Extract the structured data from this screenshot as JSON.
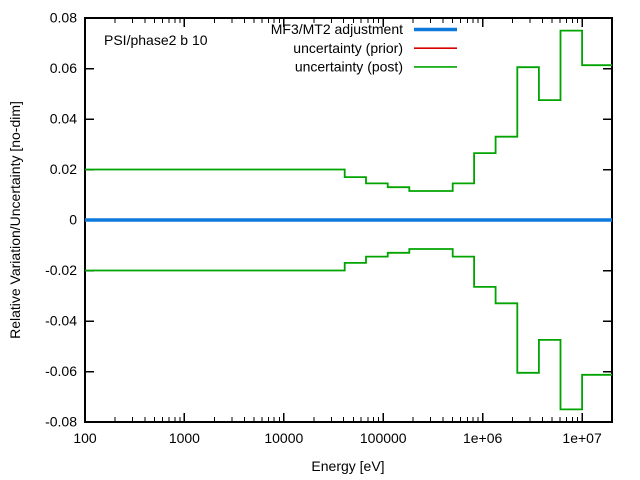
{
  "chart_data": {
    "type": "line",
    "annotation": "PSI/phase2 b 10",
    "xlabel": "Energy [eV]",
    "ylabel": "Relative Variation/Uncertainty [no-dim]",
    "xscale": "log",
    "yscale": "linear",
    "xlim": [
      100,
      20000000
    ],
    "ylim": [
      -0.08,
      0.08
    ],
    "grid": false,
    "xticks": {
      "values": [
        100,
        1000,
        10000,
        100000,
        1000000,
        10000000
      ],
      "labels": [
        "100",
        "1000",
        "10000",
        "100000",
        "1e+06",
        "1e+07"
      ]
    },
    "yticks": {
      "values": [
        -0.08,
        -0.06,
        -0.04,
        -0.02,
        0,
        0.02,
        0.04,
        0.06,
        0.08
      ],
      "labels": [
        "-0.08",
        "-0.06",
        "-0.04",
        "-0.02",
        "0",
        "0.02",
        "0.04",
        "0.06",
        "0.08"
      ]
    },
    "legend": {
      "position": "top-right-inside",
      "entries": [
        {
          "label": "MF3/MT2 adjustment",
          "color": "#0c79db",
          "line_width": 3.5
        },
        {
          "label": "uncertainty (prior)",
          "color": "#d80000",
          "line_width": 1.6
        },
        {
          "label": "uncertainty (post)",
          "color": "#00a400",
          "line_width": 1.6
        }
      ]
    },
    "series": [
      {
        "name": "MF3/MT2 adjustment",
        "style": "hline",
        "color": "#0c79db",
        "line_width": 3.5,
        "x_range": [
          100,
          20000000
        ],
        "y": 0
      },
      {
        "name": "uncertainty (post) upper",
        "style": "step",
        "color": "#00a400",
        "line_width": 1.8,
        "boundaries_eV": [
          100,
          41000,
          67000,
          111000,
          183000,
          500000,
          820000,
          1350000,
          2230000,
          3680000,
          6070000,
          10000000,
          20000000
        ],
        "values": [
          0.02,
          0.017,
          0.0145,
          0.013,
          0.0115,
          0.0145,
          0.0265,
          0.033,
          0.0605,
          0.0475,
          0.075,
          0.0613
        ]
      },
      {
        "name": "uncertainty (post) lower",
        "style": "step",
        "color": "#00a400",
        "line_width": 1.8,
        "boundaries_eV": [
          100,
          41000,
          67000,
          111000,
          183000,
          500000,
          820000,
          1350000,
          2230000,
          3680000,
          6070000,
          10000000,
          20000000
        ],
        "values": [
          -0.02,
          -0.017,
          -0.0145,
          -0.013,
          -0.0115,
          -0.0145,
          -0.0265,
          -0.033,
          -0.0605,
          -0.0475,
          -0.075,
          -0.0613
        ]
      }
    ],
    "axis_color": "#000000"
  }
}
